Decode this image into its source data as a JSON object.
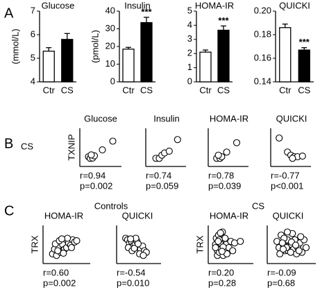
{
  "panel_labels": [
    "A",
    "B",
    "C"
  ],
  "row_label": "CS",
  "group_labels": [
    "Controls",
    "CS"
  ],
  "chart_data": [
    {
      "type": "bar",
      "title": "Glucose",
      "ylabel": "(mmol/L)",
      "categories": [
        "Ctr",
        "CS"
      ],
      "values": [
        5.3,
        5.8
      ],
      "errors": [
        0.15,
        0.25
      ],
      "colors": [
        "#ffffff",
        "#000000"
      ],
      "ylim": [
        4,
        7
      ],
      "yticks": [
        4,
        5,
        6,
        7
      ]
    },
    {
      "type": "bar",
      "title": "Insulin",
      "ylabel": "(pmol/L)",
      "categories": [
        "Ctr",
        "CS"
      ],
      "values": [
        18.5,
        33.5
      ],
      "errors": [
        1,
        3
      ],
      "colors": [
        "#ffffff",
        "#000000"
      ],
      "value_annotations": [
        null,
        "***"
      ],
      "ylim": [
        0,
        40
      ],
      "yticks": [
        0,
        10,
        20,
        30,
        40
      ]
    },
    {
      "type": "bar",
      "title": "HOMA-IR",
      "categories": [
        "Ctr",
        "CS"
      ],
      "values": [
        2.1,
        3.65
      ],
      "errors": [
        0.15,
        0.3
      ],
      "colors": [
        "#ffffff",
        "#000000"
      ],
      "value_annotations": [
        null,
        "***"
      ],
      "ylim": [
        0,
        5
      ],
      "yticks": [
        0,
        1,
        2,
        3,
        4,
        5
      ]
    },
    {
      "type": "bar",
      "title": "QUICKI",
      "categories": [
        "Ctr",
        "CS"
      ],
      "values": [
        0.186,
        0.167
      ],
      "errors": [
        0.003,
        0.002
      ],
      "colors": [
        "#ffffff",
        "#000000"
      ],
      "value_annotations": [
        null,
        "***"
      ],
      "ylim": [
        0.14,
        0.2
      ],
      "yticks": [
        0.14,
        0.16,
        0.18,
        {
          "value": 0.2,
          "label": "0.20"
        }
      ]
    },
    {
      "type": "scatter",
      "title": "Glucose",
      "ylabel": "TXNIP",
      "x": [
        1.5,
        2,
        2.7,
        3.2,
        2.3,
        5.5,
        8.5
      ],
      "y": [
        2,
        1.5,
        1.6,
        2.3,
        2.6,
        4.2,
        7
      ],
      "xlim": [
        0,
        10
      ],
      "ylim": [
        0,
        10
      ],
      "stats": [
        "r=0.94",
        "p=0.002"
      ]
    },
    {
      "type": "scatter",
      "title": "Insulin",
      "x": [
        2,
        3,
        3.8,
        4.6,
        6,
        8.5
      ],
      "y": [
        1.5,
        1.5,
        2.5,
        3.2,
        3.8,
        7.5
      ],
      "xlim": [
        0,
        10
      ],
      "ylim": [
        0,
        10
      ],
      "stats": [
        "r=0.74",
        "p=0.059"
      ]
    },
    {
      "type": "scatter",
      "title": "HOMA-IR",
      "x": [
        1.5,
        2.5,
        3,
        2,
        4.5,
        7.5
      ],
      "y": [
        1.5,
        1.5,
        2,
        2.5,
        3.5,
        6.5
      ],
      "xlim": [
        0,
        10
      ],
      "ylim": [
        0,
        10
      ],
      "stats": [
        "r=0.78",
        "p=0.039"
      ]
    },
    {
      "type": "scatter",
      "title": "QUICKI",
      "x": [
        1.5,
        4,
        5,
        6,
        7,
        8.5,
        5.5
      ],
      "y": [
        8,
        3.5,
        2.5,
        2,
        2,
        2.2,
        1.5
      ],
      "xlim": [
        0,
        10
      ],
      "ylim": [
        0,
        10
      ],
      "stats": [
        "r=-0.77",
        "p<0.001"
      ]
    },
    {
      "type": "scatter",
      "title": "HOMA-IR",
      "ylabel": "TRX",
      "x": [
        1.5,
        2,
        2.5,
        3,
        3.5,
        4,
        4.5,
        5,
        5.5,
        6,
        6.5,
        7,
        7.5,
        2.2,
        3.2,
        4.2,
        5.2,
        6.2,
        2.8,
        3.8
      ],
      "y": [
        2,
        3.5,
        1.5,
        4.5,
        2.5,
        5,
        3.5,
        4,
        5.5,
        4.8,
        6.5,
        5.8,
        6.2,
        5.2,
        6.2,
        2.2,
        7,
        4,
        3,
        6.8
      ],
      "xlim": [
        0,
        10
      ],
      "ylim": [
        0,
        10
      ],
      "stats": [
        "r=0.60",
        "p=0.002"
      ]
    },
    {
      "type": "scatter",
      "title": "QUICKI",
      "x": [
        1.5,
        2,
        2.5,
        3,
        3.5,
        4,
        4.5,
        5,
        5.5,
        6,
        6.5,
        7,
        2.2,
        3.2,
        4.2,
        5.2,
        6.2,
        2.8,
        3.8,
        4.8
      ],
      "y": [
        7,
        6.5,
        5.5,
        6,
        4.5,
        5,
        6,
        4,
        3.5,
        4.5,
        3,
        2.5,
        4,
        3,
        7,
        2,
        1.5,
        6.8,
        3.8,
        5.2
      ],
      "xlim": [
        0,
        10
      ],
      "ylim": [
        0,
        10
      ],
      "stats": [
        "r=-0.54",
        "p=0.010"
      ]
    },
    {
      "type": "scatter",
      "title": "HOMA-IR",
      "ylabel": "TRX",
      "x": [
        1,
        1.5,
        2,
        2.5,
        3,
        3.5,
        4,
        1.2,
        1.8,
        2.2,
        2.8,
        3.2,
        3.8,
        4.5,
        5,
        6,
        7.5,
        1.5,
        2,
        2.5,
        3,
        3.5,
        1,
        2,
        3,
        4,
        2.3,
        1.7,
        2.7,
        5.5
      ],
      "y": [
        5,
        3,
        4,
        2,
        6,
        4.5,
        3.5,
        7,
        8,
        5.5,
        9,
        3,
        5,
        4,
        6,
        5.5,
        6,
        1.5,
        2.5,
        3.5,
        1.5,
        7,
        4,
        6.5,
        4.2,
        2,
        8.7,
        6,
        2.8,
        3
      ],
      "xlim": [
        0,
        10
      ],
      "ylim": [
        0,
        10
      ],
      "stats": [
        "r=0.20",
        "p=0.28"
      ]
    },
    {
      "type": "scatter",
      "title": "QUICKI",
      "x": [
        1.5,
        2,
        2.5,
        3,
        3.5,
        4,
        4.5,
        5,
        5.5,
        6,
        6.5,
        7,
        7.5,
        8,
        8.5,
        2.2,
        3.2,
        4.2,
        5.2,
        6.2,
        7.2,
        2.8,
        3.8,
        4.8,
        5.8,
        6.8,
        4,
        5,
        6,
        3
      ],
      "y": [
        6,
        4,
        8,
        5,
        3,
        6.5,
        4.5,
        5,
        3.5,
        6,
        4,
        5.5,
        2.5,
        6.5,
        4,
        2,
        7,
        3,
        8.5,
        2,
        7.5,
        5.5,
        4,
        2.5,
        6.5,
        3,
        9,
        5.8,
        4.8,
        3.5
      ],
      "xlim": [
        0,
        10
      ],
      "ylim": [
        0,
        10
      ],
      "stats": [
        "r=-0.09",
        "p=0.68"
      ]
    }
  ]
}
